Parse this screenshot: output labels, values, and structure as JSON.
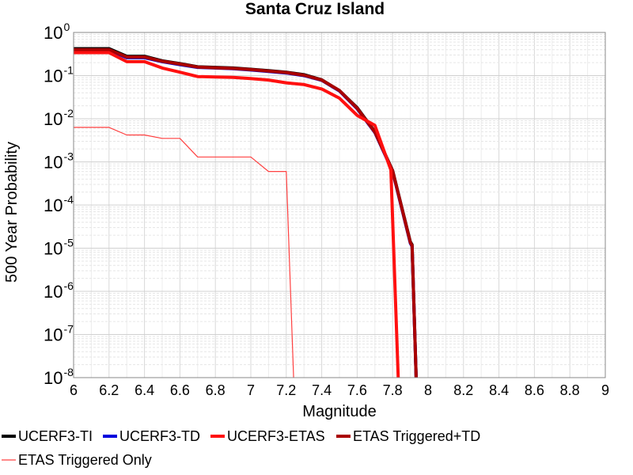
{
  "chart_data": {
    "type": "line",
    "title": "Santa Cruz Island",
    "xlabel": "Magnitude",
    "ylabel": "500 Year Probability",
    "xlim": [
      6,
      9
    ],
    "ylim": [
      1e-08,
      1
    ],
    "y_scale": "log",
    "grid": true,
    "legend_placement": "bottom",
    "x_ticks": [
      "6",
      "6.2",
      "6.4",
      "6.6",
      "6.8",
      "7",
      "7.2",
      "7.4",
      "7.6",
      "7.8",
      "8",
      "8.2",
      "8.4",
      "8.6",
      "8.8",
      "9"
    ],
    "y_ticks": [
      {
        "base": "10",
        "exp": "0"
      },
      {
        "base": "10",
        "exp": "-1"
      },
      {
        "base": "10",
        "exp": "-2"
      },
      {
        "base": "10",
        "exp": "-3"
      },
      {
        "base": "10",
        "exp": "-4"
      },
      {
        "base": "10",
        "exp": "-5"
      },
      {
        "base": "10",
        "exp": "-6"
      },
      {
        "base": "10",
        "exp": "-7"
      },
      {
        "base": "10",
        "exp": "-8"
      }
    ],
    "series": [
      {
        "name": "UCERF3-TI",
        "color": "#000000",
        "width": 4,
        "x": [
          6.0,
          6.2,
          6.3,
          6.4,
          6.5,
          6.6,
          6.7,
          6.8,
          6.9,
          7.0,
          7.1,
          7.2,
          7.3,
          7.4,
          7.5,
          7.6,
          7.7,
          7.8,
          7.9,
          7.91,
          7.94
        ],
        "y": [
          0.42,
          0.42,
          0.28,
          0.28,
          0.22,
          0.19,
          0.16,
          0.155,
          0.15,
          0.14,
          0.13,
          0.12,
          0.105,
          0.08,
          0.045,
          0.018,
          0.005,
          0.00063,
          1.4e-05,
          1.2e-05,
          1e-09
        ]
      },
      {
        "name": "UCERF3-TD",
        "color": "#0000dd",
        "width": 4,
        "x": [
          6.0,
          6.2,
          6.3,
          6.4,
          6.5,
          6.6,
          6.7,
          6.8,
          6.9,
          7.0,
          7.1,
          7.2,
          7.3,
          7.4,
          7.5,
          7.6,
          7.7,
          7.8,
          7.9,
          7.91,
          7.94
        ],
        "y": [
          0.39,
          0.39,
          0.26,
          0.26,
          0.21,
          0.18,
          0.155,
          0.15,
          0.145,
          0.135,
          0.125,
          0.115,
          0.1,
          0.078,
          0.044,
          0.017,
          0.0048,
          0.0006,
          1.3e-05,
          1.1e-05,
          1e-09
        ]
      },
      {
        "name": "UCERF3-ETAS",
        "color": "#ff1010",
        "width": 4,
        "x": [
          6.0,
          6.2,
          6.3,
          6.4,
          6.5,
          6.6,
          6.7,
          6.8,
          6.9,
          7.0,
          7.1,
          7.2,
          7.3,
          7.4,
          7.5,
          7.6,
          7.7,
          7.79,
          7.84
        ],
        "y": [
          0.34,
          0.34,
          0.21,
          0.21,
          0.15,
          0.12,
          0.095,
          0.093,
          0.091,
          0.085,
          0.079,
          0.068,
          0.062,
          0.049,
          0.03,
          0.012,
          0.007,
          0.00065,
          1e-09
        ]
      },
      {
        "name": "ETAS Triggered+TD",
        "color": "#aa0000",
        "width": 4,
        "x": [
          6.0,
          6.2,
          6.3,
          6.4,
          6.5,
          6.6,
          6.7,
          6.8,
          6.9,
          7.0,
          7.1,
          7.2,
          7.3,
          7.4,
          7.5,
          7.6,
          7.7,
          7.8,
          7.9,
          7.91,
          7.94
        ],
        "y": [
          0.4,
          0.4,
          0.27,
          0.27,
          0.215,
          0.185,
          0.158,
          0.152,
          0.147,
          0.138,
          0.128,
          0.118,
          0.102,
          0.079,
          0.045,
          0.0175,
          0.0049,
          0.00062,
          1.35e-05,
          1.15e-05,
          1e-09
        ]
      },
      {
        "name": "ETAS Triggered Only",
        "color": "#ff4040",
        "width": 1.2,
        "x": [
          6.0,
          6.2,
          6.3,
          6.4,
          6.5,
          6.6,
          6.7,
          6.8,
          6.9,
          7.0,
          7.1,
          7.2,
          7.25
        ],
        "y": [
          0.0063,
          0.0063,
          0.0042,
          0.0042,
          0.0035,
          0.0035,
          0.0013,
          0.0013,
          0.0013,
          0.0013,
          0.0006,
          0.0006,
          1e-09
        ]
      }
    ]
  }
}
